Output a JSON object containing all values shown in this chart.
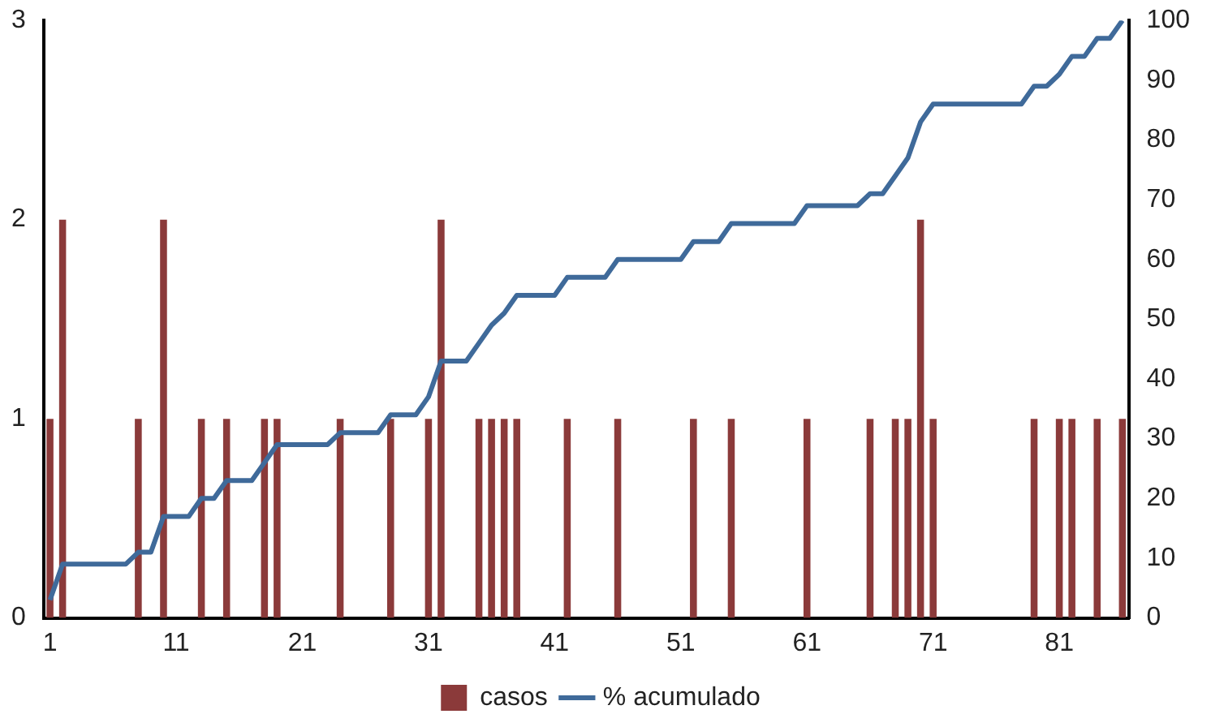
{
  "chart_data": {
    "type": "bar",
    "categories": [
      "1",
      null,
      null,
      null,
      null,
      null,
      null,
      null,
      null,
      null,
      "11",
      null,
      null,
      null,
      null,
      null,
      null,
      null,
      null,
      null,
      "21",
      null,
      null,
      null,
      null,
      null,
      null,
      null,
      null,
      null,
      "31",
      null,
      null,
      null,
      null,
      null,
      null,
      null,
      null,
      null,
      "41",
      null,
      null,
      null,
      null,
      null,
      null,
      null,
      null,
      null,
      "51",
      null,
      null,
      null,
      null,
      null,
      null,
      null,
      null,
      null,
      "61",
      null,
      null,
      null,
      null,
      null,
      null,
      null,
      null,
      null,
      "71",
      null,
      null,
      null,
      null,
      null,
      null,
      null,
      null,
      null,
      "81",
      null,
      null,
      null,
      null,
      null
    ],
    "series": [
      {
        "name": "casos",
        "color": "#8b3a3a",
        "values": [
          1,
          2,
          0,
          0,
          0,
          0,
          0,
          1,
          0,
          2,
          0,
          0,
          1,
          0,
          1,
          0,
          0,
          1,
          1,
          0,
          0,
          0,
          0,
          1,
          0,
          0,
          0,
          1,
          0,
          0,
          1,
          2,
          0,
          0,
          1,
          1,
          1,
          1,
          0,
          0,
          0,
          1,
          0,
          0,
          0,
          1,
          0,
          0,
          0,
          0,
          0,
          1,
          0,
          0,
          1,
          0,
          0,
          0,
          0,
          0,
          1,
          0,
          0,
          0,
          0,
          1,
          0,
          1,
          1,
          2,
          1,
          0,
          0,
          0,
          0,
          0,
          0,
          0,
          1,
          0,
          1,
          1,
          0,
          1,
          0,
          1
        ]
      },
      {
        "name": "% acumulado",
        "type": "line",
        "axis": "y2",
        "color": "#3f6a9a",
        "values": [
          3,
          9,
          9,
          9,
          9,
          9,
          9,
          11,
          11,
          17,
          17,
          17,
          20,
          20,
          23,
          23,
          23,
          26,
          29,
          29,
          29,
          29,
          29,
          31,
          31,
          31,
          31,
          34,
          34,
          34,
          37,
          43,
          43,
          43,
          46,
          49,
          51,
          54,
          54,
          54,
          54,
          57,
          57,
          57,
          57,
          60,
          60,
          60,
          60,
          60,
          60,
          63,
          63,
          63,
          66,
          66,
          66,
          66,
          66,
          66,
          69,
          69,
          69,
          69,
          69,
          71,
          71,
          74,
          77,
          83,
          86,
          86,
          86,
          86,
          86,
          86,
          86,
          86,
          89,
          89,
          91,
          94,
          94,
          97,
          97,
          100
        ]
      }
    ],
    "ylim": [
      0,
      3
    ],
    "yticks": [
      0,
      1,
      2,
      3
    ],
    "y2lim": [
      0,
      100
    ],
    "y2ticks": [
      0,
      10,
      20,
      30,
      40,
      50,
      60,
      70,
      80,
      90,
      100
    ],
    "grid": false,
    "legend": "bottom",
    "marker": "none"
  }
}
